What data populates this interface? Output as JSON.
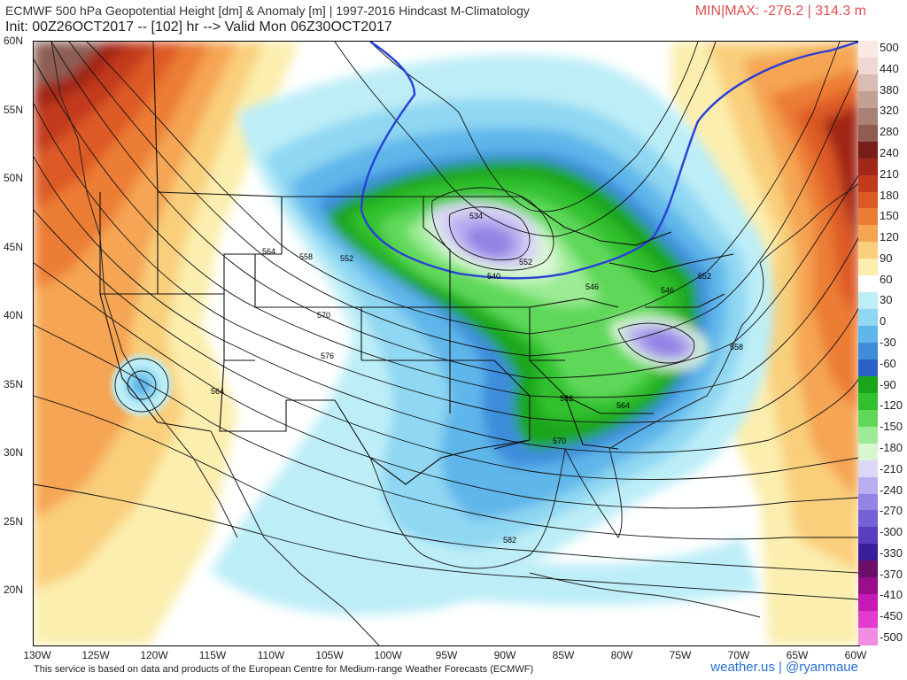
{
  "header": {
    "title": "ECMWF 500 hPa Geopotential Height [dm] & Anomaly [m] | 1997-2016 Hindcast M-Climatology",
    "init_line": "Init: 00Z26OCT2017 -- [102] hr --> Valid Mon 06Z30OCT2017",
    "minmax": "MIN|MAX: -276.2 | 314.3 m"
  },
  "lat_labels": [
    "60N",
    "55N",
    "50N",
    "45N",
    "40N",
    "35N",
    "30N",
    "25N",
    "20N"
  ],
  "lon_labels": [
    "130W",
    "125W",
    "120W",
    "115W",
    "110W",
    "105W",
    "100W",
    "95W",
    "90W",
    "85W",
    "80W",
    "75W",
    "70W",
    "65W",
    "60W"
  ],
  "contour_labels": [
    "564",
    "558",
    "552",
    "570",
    "576",
    "582",
    "564",
    "552",
    "546",
    "558",
    "552",
    "546",
    "540",
    "534",
    "564",
    "570",
    "582"
  ],
  "colorbar": {
    "labels": [
      "500",
      "440",
      "380",
      "320",
      "280",
      "240",
      "210",
      "180",
      "150",
      "120",
      "90",
      "60",
      "30",
      "0",
      "-30",
      "-60",
      "-90",
      "-120",
      "-150",
      "-180",
      "-210",
      "-240",
      "-270",
      "-300",
      "-330",
      "-370",
      "-410",
      "-450",
      "-500"
    ],
    "colors": [
      "#fbe9e4",
      "#efd9d2",
      "#d9bcb3",
      "#c3a094",
      "#a98074",
      "#8d5d52",
      "#7a1e1a",
      "#a12818",
      "#c33a1c",
      "#dd5a25",
      "#ec7d34",
      "#f5a552",
      "#f9cf7c",
      "#fbeeae",
      "#ffffff",
      "#bdeef7",
      "#8fd7f2",
      "#5fb6ea",
      "#3e8ddb",
      "#2a62c9",
      "#1aa61a",
      "#30c12d",
      "#5fd85a",
      "#9cec95",
      "#d8f6d2",
      "#dcd6f7",
      "#b9aef0",
      "#9284e4",
      "#7560d6",
      "#5b3dc4",
      "#3b1f9a",
      "#6a0f6a",
      "#9a0e8a",
      "#c71ab4",
      "#e33ad0",
      "#f08ee2"
    ]
  },
  "footer": "This service is based on data and products of the European Centre for Medium-range Weather Forecasts (ECMWF)",
  "brand": "weather.us | @ryanmaue"
}
